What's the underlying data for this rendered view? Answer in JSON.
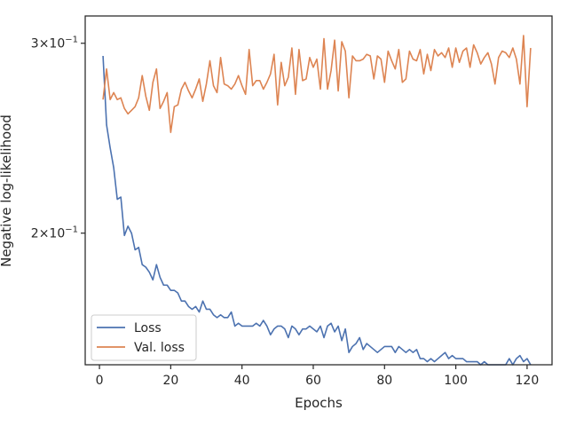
{
  "chart_data": {
    "type": "line",
    "title": "",
    "xlabel": "Epochs",
    "ylabel": "Negative log-likelihood",
    "xlim": [
      -4,
      127
    ],
    "ylim": [
      0.151,
      0.318
    ],
    "yscale": "log",
    "grid": false,
    "legend_position": "lower-left",
    "x_ticks": [
      0,
      20,
      40,
      60,
      80,
      100,
      120
    ],
    "x_tick_labels": [
      "0",
      "20",
      "40",
      "60",
      "80",
      "100",
      "120"
    ],
    "y_ticks": [
      0.2,
      0.3
    ],
    "y_tick_labels": [
      {
        "mant": "2",
        "mul": "×",
        "base": "10",
        "exp": "−1"
      },
      {
        "mant": "3",
        "mul": "×",
        "base": "10",
        "exp": "−1"
      }
    ],
    "x": [
      1,
      2,
      3,
      4,
      5,
      6,
      7,
      8,
      9,
      10,
      11,
      12,
      13,
      14,
      15,
      16,
      17,
      18,
      19,
      20,
      21,
      22,
      23,
      24,
      25,
      26,
      27,
      28,
      29,
      30,
      31,
      32,
      33,
      34,
      35,
      36,
      37,
      38,
      39,
      40,
      41,
      42,
      43,
      44,
      45,
      46,
      47,
      48,
      49,
      50,
      51,
      52,
      53,
      54,
      55,
      56,
      57,
      58,
      59,
      60,
      61,
      62,
      63,
      64,
      65,
      66,
      67,
      68,
      69,
      70,
      71,
      72,
      73,
      74,
      75,
      76,
      77,
      78,
      79,
      80,
      81,
      82,
      83,
      84,
      85,
      86,
      87,
      88,
      89,
      90,
      91,
      92,
      93,
      94,
      95,
      96,
      97,
      98,
      99,
      100,
      101,
      102,
      103,
      104,
      105,
      106,
      107,
      108,
      109,
      110,
      111,
      112,
      113,
      114,
      115,
      116,
      117,
      118,
      119,
      120,
      121
    ],
    "series": [
      {
        "name": "Loss",
        "color": "#4c72b0",
        "values": [
          0.292,
          0.252,
          0.24,
          0.23,
          0.215,
          0.216,
          0.199,
          0.203,
          0.2,
          0.193,
          0.194,
          0.187,
          0.186,
          0.184,
          0.181,
          0.187,
          0.182,
          0.179,
          0.179,
          0.177,
          0.177,
          0.176,
          0.173,
          0.173,
          0.171,
          0.17,
          0.171,
          0.169,
          0.173,
          0.17,
          0.17,
          0.168,
          0.167,
          0.168,
          0.167,
          0.167,
          0.169,
          0.164,
          0.165,
          0.164,
          0.164,
          0.164,
          0.164,
          0.165,
          0.164,
          0.166,
          0.164,
          0.161,
          0.163,
          0.164,
          0.164,
          0.163,
          0.16,
          0.164,
          0.163,
          0.161,
          0.163,
          0.163,
          0.164,
          0.163,
          0.162,
          0.164,
          0.16,
          0.164,
          0.165,
          0.162,
          0.164,
          0.159,
          0.163,
          0.155,
          0.157,
          0.158,
          0.16,
          0.156,
          0.158,
          0.157,
          0.156,
          0.155,
          0.156,
          0.157,
          0.157,
          0.157,
          0.155,
          0.157,
          0.156,
          0.155,
          0.156,
          0.155,
          0.156,
          0.153,
          0.153,
          0.152,
          0.153,
          0.152,
          0.153,
          0.154,
          0.155,
          0.153,
          0.154,
          0.153,
          0.153,
          0.153,
          0.152,
          0.152,
          0.152,
          0.152,
          0.151,
          0.152,
          0.151,
          0.151,
          0.151,
          0.151,
          0.151,
          0.151,
          0.153,
          0.151,
          0.153,
          0.154,
          0.152,
          0.153,
          0.151
        ]
      },
      {
        "name": "Val. loss",
        "color": "#dd8452",
        "values": [
          0.266,
          0.284,
          0.266,
          0.27,
          0.266,
          0.267,
          0.261,
          0.258,
          0.26,
          0.262,
          0.267,
          0.28,
          0.268,
          0.26,
          0.276,
          0.284,
          0.261,
          0.265,
          0.27,
          0.248,
          0.262,
          0.263,
          0.272,
          0.276,
          0.271,
          0.267,
          0.272,
          0.278,
          0.265,
          0.275,
          0.289,
          0.274,
          0.27,
          0.291,
          0.275,
          0.274,
          0.272,
          0.275,
          0.28,
          0.274,
          0.269,
          0.296,
          0.274,
          0.277,
          0.277,
          0.272,
          0.276,
          0.281,
          0.293,
          0.263,
          0.288,
          0.274,
          0.279,
          0.297,
          0.269,
          0.296,
          0.277,
          0.278,
          0.291,
          0.285,
          0.29,
          0.272,
          0.303,
          0.272,
          0.283,
          0.302,
          0.271,
          0.301,
          0.295,
          0.267,
          0.292,
          0.289,
          0.289,
          0.29,
          0.293,
          0.292,
          0.278,
          0.292,
          0.29,
          0.276,
          0.295,
          0.289,
          0.284,
          0.296,
          0.276,
          0.278,
          0.295,
          0.29,
          0.289,
          0.296,
          0.281,
          0.293,
          0.283,
          0.296,
          0.292,
          0.294,
          0.291,
          0.297,
          0.285,
          0.297,
          0.288,
          0.295,
          0.297,
          0.285,
          0.299,
          0.294,
          0.287,
          0.291,
          0.294,
          0.287,
          0.275,
          0.291,
          0.295,
          0.294,
          0.291,
          0.297,
          0.29,
          0.275,
          0.305,
          0.262,
          0.297
        ]
      }
    ]
  }
}
